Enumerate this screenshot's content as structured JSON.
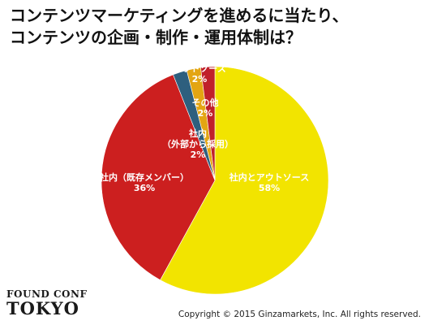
{
  "title": {
    "line1": "コンテンツマーケティングを進めるに当たり、",
    "line2": "コンテンツの企画・制作・運用体制は？"
  },
  "chart_data": {
    "type": "pie",
    "start": "12 o'clock",
    "direction": "clockwise",
    "slices": [
      {
        "label": "社内とアウトソース",
        "value": 58,
        "value_label": "58%",
        "color": "#f2e400"
      },
      {
        "label": "社内（既存メンバー）",
        "value": 36,
        "value_label": "36%",
        "color": "#cc1f1f"
      },
      {
        "label": "社内\n（外部から採用）",
        "value": 2,
        "value_label": "2%",
        "color": "#2e5f7e"
      },
      {
        "label": "その他",
        "value": 2,
        "value_label": "2%",
        "color": "#e3a512"
      },
      {
        "label": "アウトソース",
        "value": 2,
        "value_label": "2%",
        "color": "#c0202a"
      }
    ]
  },
  "branding": {
    "logo_line1": "FOUND CONF",
    "logo_line2": "TOKYO"
  },
  "copyright": "Copyright © 2015 Ginzamarkets, Inc. All rights reserved."
}
